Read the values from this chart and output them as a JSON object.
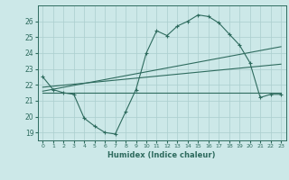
{
  "title": "",
  "xlabel": "Humidex (Indice chaleur)",
  "ylabel": "",
  "bg_color": "#cce8e8",
  "line_color": "#2e6b5e",
  "grid_color": "#aacece",
  "xlim": [
    -0.5,
    23.5
  ],
  "ylim": [
    18.5,
    27.0
  ],
  "xticks": [
    0,
    1,
    2,
    3,
    4,
    5,
    6,
    7,
    8,
    9,
    10,
    11,
    12,
    13,
    14,
    15,
    16,
    17,
    18,
    19,
    20,
    21,
    22,
    23
  ],
  "yticks": [
    19,
    20,
    21,
    22,
    23,
    24,
    25,
    26
  ],
  "series_main": {
    "x": [
      0,
      1,
      2,
      3,
      4,
      5,
      6,
      7,
      8,
      9,
      10,
      11,
      12,
      13,
      14,
      15,
      16,
      17,
      18,
      19,
      20,
      21,
      22,
      23
    ],
    "y": [
      22.5,
      21.7,
      21.5,
      21.4,
      19.9,
      19.4,
      19.0,
      18.9,
      20.3,
      21.7,
      24.0,
      25.4,
      25.1,
      25.7,
      26.0,
      26.4,
      26.3,
      25.9,
      25.2,
      24.5,
      23.4,
      21.2,
      21.4,
      21.4
    ]
  },
  "line_flat": {
    "x": [
      0,
      23
    ],
    "y": [
      21.5,
      21.5
    ]
  },
  "line_diag1": {
    "x": [
      0,
      23
    ],
    "y": [
      21.6,
      24.4
    ]
  },
  "line_diag2": {
    "x": [
      0,
      23
    ],
    "y": [
      21.85,
      23.3
    ]
  }
}
